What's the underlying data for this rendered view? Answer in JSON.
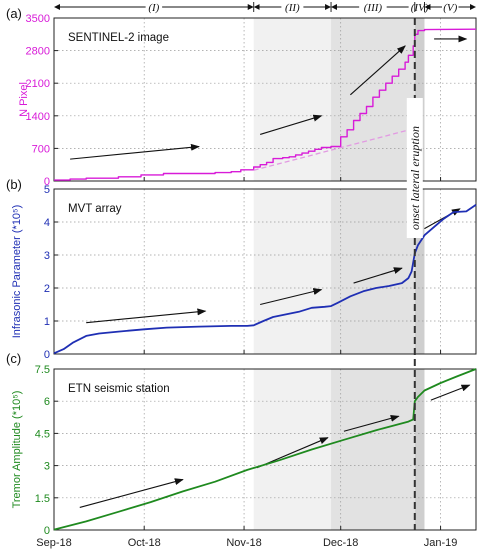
{
  "colors": {
    "sentinel": "#d81bd8",
    "mvt": "#1f2fb4",
    "etn": "#1f8a1f",
    "phase2_bg": "#f1f1f1",
    "phase3_bg": "#e2e2e2",
    "phase4_bg": "#cfcfcf"
  },
  "phases": [
    {
      "label": "(I)",
      "start": 0,
      "end": 62
    },
    {
      "label": "(II)",
      "start": 62,
      "end": 86
    },
    {
      "label": "(III)",
      "start": 86,
      "end": 112
    },
    {
      "label": "(IV)",
      "start": 112,
      "end": 115
    },
    {
      "label": "(V)",
      "start": 115,
      "end": 131
    }
  ],
  "onset": {
    "day": 112,
    "label": "onset lateral eruption"
  },
  "x_axis": {
    "range": [
      0,
      131
    ],
    "ticks": [
      {
        "label": "Sep-18",
        "day": 0
      },
      {
        "label": "Oct-18",
        "day": 28
      },
      {
        "label": "Nov-18",
        "day": 59
      },
      {
        "label": "Dec-18",
        "day": 89
      },
      {
        "label": "Jan-19",
        "day": 120
      }
    ]
  },
  "chart_data": [
    {
      "type": "line",
      "panel": "(a)",
      "title": "SENTINEL-2 image",
      "ylabel": "N  Pixel",
      "ylim": [
        0,
        3500
      ],
      "yticks": [
        0,
        700,
        1400,
        2100,
        2800,
        3500
      ],
      "ytick_labels": [
        "0",
        "700",
        "1400",
        "2100",
        "2800",
        "3500"
      ],
      "series": [
        {
          "x": [
            0,
            5,
            5,
            10,
            10,
            20,
            20,
            27,
            27,
            34,
            34,
            50,
            50,
            55,
            55,
            58,
            58,
            62,
            62,
            64,
            64,
            66,
            66,
            68,
            68,
            71,
            71,
            73,
            73,
            75,
            75,
            77,
            77,
            79,
            79,
            81,
            81,
            83,
            83,
            86,
            86,
            89,
            89,
            91,
            91,
            93,
            93,
            95,
            95,
            97,
            97,
            99,
            99,
            101,
            101,
            103,
            103,
            105,
            105,
            107,
            107,
            109,
            109,
            110,
            110,
            111.5,
            111.5,
            112,
            112,
            113,
            113,
            115,
            115,
            131
          ],
          "y": [
            20,
            20,
            40,
            40,
            60,
            60,
            90,
            90,
            130,
            130,
            160,
            160,
            180,
            180,
            200,
            200,
            240,
            240,
            300,
            300,
            350,
            350,
            400,
            400,
            480,
            480,
            500,
            500,
            520,
            520,
            560,
            560,
            600,
            600,
            640,
            640,
            680,
            680,
            720,
            720,
            740,
            740,
            950,
            950,
            1100,
            1100,
            1300,
            1300,
            1450,
            1450,
            1600,
            1600,
            1800,
            1800,
            1950,
            1950,
            2100,
            2100,
            2250,
            2250,
            2400,
            2400,
            2550,
            2550,
            2700,
            2700,
            2900,
            2900,
            3150,
            3150,
            3230,
            3230,
            3250,
            3260
          ]
        },
        {
          "style": "dashed",
          "x": [
            62,
            112
          ],
          "y": [
            230,
            1130
          ]
        }
      ],
      "arrows": [
        {
          "x1": 5,
          "y1": 470,
          "x2": 45,
          "y2": 740
        },
        {
          "x1": 64,
          "y1": 1000,
          "x2": 83,
          "y2": 1400
        },
        {
          "x1": 92,
          "y1": 1850,
          "x2": 109,
          "y2": 2900
        },
        {
          "x1": 118,
          "y1": 3050,
          "x2": 128,
          "y2": 3050
        }
      ]
    },
    {
      "type": "line",
      "panel": "(b)",
      "title": "MVT array",
      "ylabel": "Infrasonic Parameter (*10⁵)",
      "ylim": [
        0,
        5
      ],
      "yticks": [
        0,
        1,
        2,
        3,
        4,
        5
      ],
      "ytick_labels": [
        "0",
        "1",
        "2",
        "3",
        "4",
        "5"
      ],
      "series": [
        {
          "x": [
            0,
            3,
            6,
            10,
            14,
            20,
            28,
            35,
            45,
            55,
            60,
            62,
            65,
            68,
            72,
            76,
            80,
            84,
            86,
            88,
            92,
            96,
            100,
            104,
            108,
            110,
            111,
            112,
            113,
            115,
            118,
            121,
            124,
            128,
            131
          ],
          "y": [
            0.02,
            0.15,
            0.35,
            0.55,
            0.62,
            0.68,
            0.75,
            0.8,
            0.83,
            0.85,
            0.85,
            0.87,
            1.0,
            1.12,
            1.2,
            1.28,
            1.4,
            1.43,
            1.45,
            1.55,
            1.75,
            1.9,
            2.0,
            2.06,
            2.15,
            2.3,
            2.5,
            3.05,
            3.3,
            3.6,
            3.85,
            4.1,
            4.3,
            4.32,
            4.52
          ]
        }
      ],
      "arrows": [
        {
          "x1": 10,
          "y1": 0.95,
          "x2": 47,
          "y2": 1.3
        },
        {
          "x1": 64,
          "y1": 1.5,
          "x2": 83,
          "y2": 1.95
        },
        {
          "x1": 93,
          "y1": 2.15,
          "x2": 108,
          "y2": 2.6
        },
        {
          "x1": 115,
          "y1": 3.8,
          "x2": 126,
          "y2": 4.4
        }
      ]
    },
    {
      "type": "line",
      "panel": "(c)",
      "title": "ETN seismic station",
      "ylabel": "Tremor Amplitude   (*10⁵)",
      "ylim": [
        0,
        7.5
      ],
      "yticks": [
        0,
        1.5,
        3,
        4.5,
        6,
        7.5
      ],
      "ytick_labels": [
        "0",
        "1.5",
        "3",
        "4.5",
        "6",
        "7.5"
      ],
      "series": [
        {
          "x": [
            0,
            10,
            20,
            30,
            40,
            50,
            60,
            70,
            80,
            90,
            100,
            110,
            111.5,
            112,
            113,
            115,
            120,
            125,
            131
          ],
          "y": [
            0.02,
            0.4,
            0.85,
            1.3,
            1.8,
            2.25,
            2.8,
            3.25,
            3.75,
            4.2,
            4.65,
            5.05,
            5.15,
            6.0,
            6.2,
            6.5,
            6.85,
            7.15,
            7.5
          ]
        }
      ],
      "arrows": [
        {
          "x1": 8,
          "y1": 1.05,
          "x2": 40,
          "y2": 2.35
        },
        {
          "x1": 63,
          "y1": 2.9,
          "x2": 85,
          "y2": 4.3
        },
        {
          "x1": 90,
          "y1": 4.6,
          "x2": 107,
          "y2": 5.3
        },
        {
          "x1": 117,
          "y1": 6.05,
          "x2": 129,
          "y2": 6.75
        }
      ]
    }
  ]
}
